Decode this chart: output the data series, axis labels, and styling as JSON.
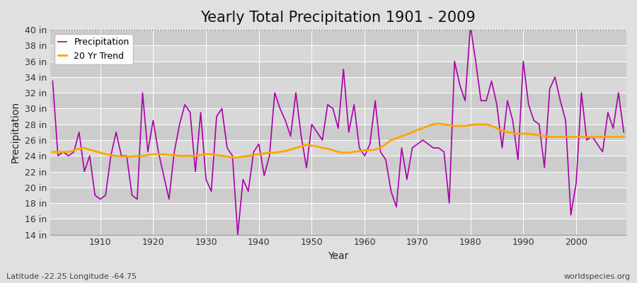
{
  "title": "Yearly Total Precipitation 1901 - 2009",
  "xlabel": "Year",
  "ylabel": "Precipitation",
  "subtitle_lat_lon": "Latitude -22.25 Longitude -64.75",
  "watermark": "worldspecies.org",
  "years": [
    1901,
    1902,
    1903,
    1904,
    1905,
    1906,
    1907,
    1908,
    1909,
    1910,
    1911,
    1912,
    1913,
    1914,
    1915,
    1916,
    1917,
    1918,
    1919,
    1920,
    1921,
    1922,
    1923,
    1924,
    1925,
    1926,
    1927,
    1928,
    1929,
    1930,
    1931,
    1932,
    1933,
    1934,
    1935,
    1936,
    1937,
    1938,
    1939,
    1940,
    1941,
    1942,
    1943,
    1944,
    1945,
    1946,
    1947,
    1948,
    1949,
    1950,
    1951,
    1952,
    1953,
    1954,
    1955,
    1956,
    1957,
    1958,
    1959,
    1960,
    1961,
    1962,
    1963,
    1964,
    1965,
    1966,
    1967,
    1968,
    1969,
    1970,
    1971,
    1972,
    1973,
    1974,
    1975,
    1976,
    1977,
    1978,
    1979,
    1980,
    1981,
    1982,
    1983,
    1984,
    1985,
    1986,
    1987,
    1988,
    1989,
    1990,
    1991,
    1992,
    1993,
    1994,
    1995,
    1996,
    1997,
    1998,
    1999,
    2000,
    2001,
    2002,
    2003,
    2004,
    2005,
    2006,
    2007,
    2008,
    2009
  ],
  "precipitation": [
    33.5,
    24.0,
    24.5,
    24.0,
    24.5,
    27.0,
    22.0,
    24.0,
    19.0,
    18.5,
    19.0,
    24.0,
    27.0,
    24.0,
    24.0,
    19.0,
    18.5,
    32.0,
    24.5,
    28.5,
    24.5,
    21.5,
    18.5,
    24.5,
    28.0,
    30.5,
    29.5,
    22.0,
    29.5,
    21.0,
    19.5,
    29.0,
    30.0,
    25.0,
    24.0,
    14.0,
    21.0,
    19.5,
    24.5,
    25.5,
    21.5,
    24.0,
    32.0,
    30.0,
    28.5,
    26.5,
    32.0,
    26.5,
    22.5,
    28.0,
    27.0,
    26.0,
    30.5,
    30.0,
    27.5,
    35.0,
    27.0,
    30.5,
    25.0,
    24.0,
    25.5,
    31.0,
    24.5,
    23.5,
    19.5,
    17.5,
    25.0,
    21.0,
    25.0,
    25.5,
    26.0,
    25.5,
    25.0,
    25.0,
    24.5,
    18.0,
    36.0,
    33.0,
    31.0,
    40.5,
    36.0,
    31.0,
    31.0,
    33.5,
    30.5,
    25.0,
    31.0,
    28.5,
    23.5,
    36.0,
    30.5,
    28.5,
    28.0,
    22.5,
    32.5,
    34.0,
    31.0,
    28.5,
    16.5,
    20.5,
    32.0,
    26.0,
    26.5,
    25.5,
    24.5,
    29.5,
    27.5,
    32.0,
    27.0
  ],
  "trend": [
    24.5,
    24.5,
    24.5,
    24.5,
    24.7,
    24.9,
    25.0,
    24.8,
    24.6,
    24.4,
    24.2,
    24.1,
    24.0,
    23.9,
    23.9,
    23.9,
    24.0,
    24.0,
    24.1,
    24.2,
    24.2,
    24.2,
    24.1,
    24.1,
    24.0,
    24.0,
    24.0,
    24.0,
    24.1,
    24.2,
    24.2,
    24.1,
    24.0,
    23.9,
    23.8,
    23.8,
    23.9,
    24.0,
    24.1,
    24.2,
    24.3,
    24.4,
    24.4,
    24.5,
    24.6,
    24.8,
    25.0,
    25.2,
    25.4,
    25.3,
    25.2,
    25.0,
    24.9,
    24.7,
    24.5,
    24.4,
    24.4,
    24.5,
    24.6,
    24.7,
    24.7,
    24.8,
    25.0,
    25.5,
    26.0,
    26.2,
    26.5,
    26.7,
    27.0,
    27.3,
    27.5,
    27.8,
    28.0,
    28.1,
    28.0,
    27.9,
    27.8,
    27.8,
    27.8,
    27.9,
    28.0,
    28.0,
    28.0,
    27.8,
    27.5,
    27.2,
    27.0,
    26.9,
    26.8,
    26.8,
    26.8,
    26.7,
    26.6,
    26.5,
    26.4,
    26.4,
    26.4,
    26.4,
    26.4,
    26.4,
    26.4,
    26.4,
    26.4,
    26.4,
    26.4,
    26.4,
    26.4,
    26.4,
    26.4
  ],
  "precip_color": "#aa00aa",
  "trend_color": "#ffa500",
  "bg_color": "#e0e0e0",
  "plot_bg_color": "#d8d8d8",
  "band_colors": [
    "#cccccc",
    "#d8d8d8"
  ],
  "grid_color": "#ffffff",
  "vgrid_color": "#bbbbbb",
  "ylim": [
    14,
    40
  ],
  "yticks": [
    14,
    16,
    18,
    20,
    22,
    24,
    26,
    28,
    30,
    32,
    34,
    36,
    38,
    40
  ],
  "xticks": [
    1910,
    1920,
    1930,
    1940,
    1950,
    1960,
    1970,
    1980,
    1990,
    2000
  ],
  "hline_y": 40,
  "title_fontsize": 15,
  "axis_fontsize": 10,
  "tick_fontsize": 9,
  "legend_fontsize": 9
}
